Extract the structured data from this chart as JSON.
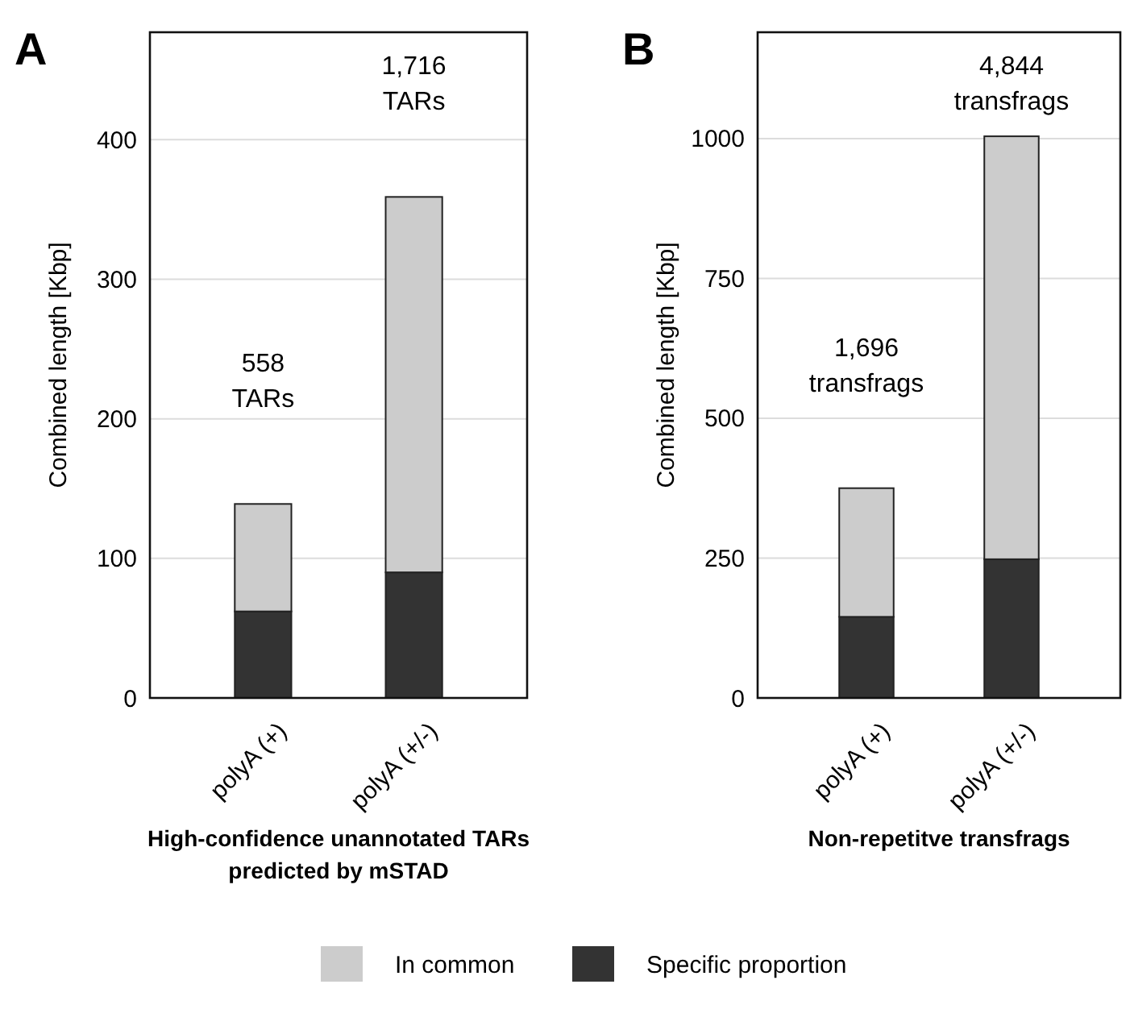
{
  "chart_data": [
    {
      "type": "bar",
      "title": "A",
      "xlabel": "High-confidence unannotated TARs\npredicted by mSTAD",
      "ylabel": "Combined length [Kbp]",
      "categories": [
        "polyA (+)",
        "polyA (+/-)"
      ],
      "stacked": true,
      "series": [
        {
          "name": "Specific proportion",
          "color": "#333333",
          "values": [
            62,
            90
          ]
        },
        {
          "name": "In common",
          "color": "#cccccc",
          "values": [
            77,
            269
          ]
        }
      ],
      "ylim": [
        0,
        477
      ],
      "yticks": [
        0,
        100,
        200,
        300,
        400
      ],
      "grid": "y",
      "legend": "bottom",
      "annotations": [
        "558\nTARs",
        "1,716\nTARs"
      ]
    },
    {
      "type": "bar",
      "title": "B",
      "xlabel": "Non-repetitve transfrags",
      "ylabel": "Combined length [Kbp]",
      "categories": [
        "polyA (+)",
        "polyA (+/-)"
      ],
      "stacked": true,
      "series": [
        {
          "color": "#333333",
          "values": [
            145,
            248
          ]
        },
        {
          "color": "#cccccc",
          "values": [
            230,
            756
          ]
        }
      ],
      "ylim": [
        0,
        1190
      ],
      "yticks": [
        0,
        250,
        500,
        750,
        1000
      ],
      "grid": "y",
      "annotations": [
        "1,696\ntransfrags",
        "4,844\ntransfrags"
      ]
    }
  ]
}
